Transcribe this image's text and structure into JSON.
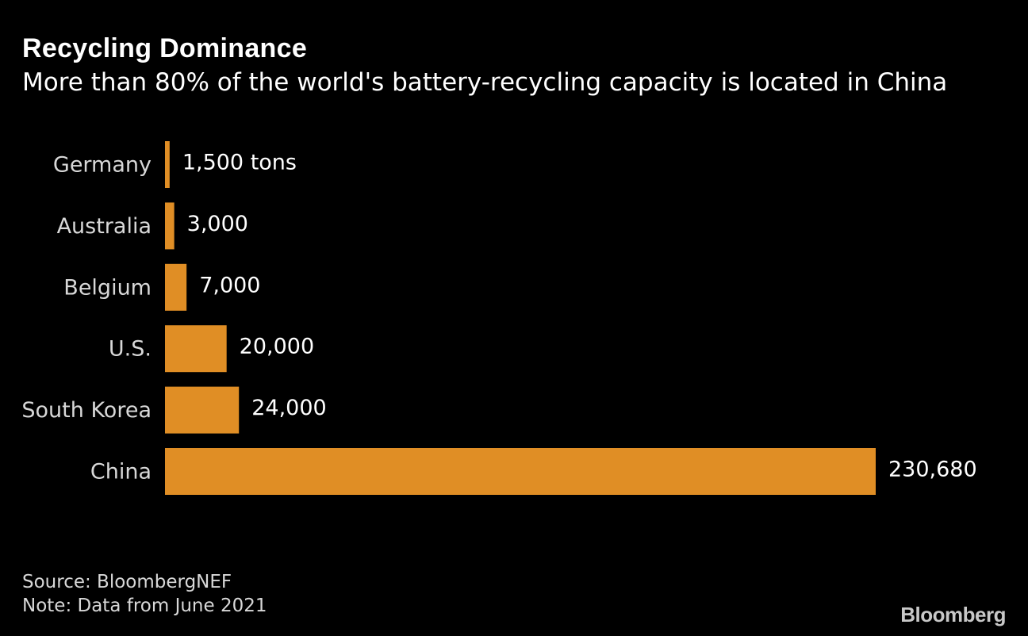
{
  "chart_data": {
    "type": "bar",
    "orientation": "horizontal",
    "title": "Recycling Dominance",
    "subtitle": "More than 80% of the world's battery-recycling capacity is located in China",
    "categories": [
      "Germany",
      "Australia",
      "Belgium",
      "U.S.",
      "South Korea",
      "China"
    ],
    "values": [
      1500,
      3000,
      7000,
      20000,
      24000,
      230680
    ],
    "data_labels": [
      "1,500 tons",
      "3,000",
      "7,000",
      "20,000",
      "24,000",
      "230,680"
    ],
    "unit": "tons",
    "xlim": [
      0,
      230680
    ],
    "grid": false,
    "bar_color": "#e08e25",
    "background": "#000000"
  },
  "footer": {
    "source": "Source: BloombergNEF",
    "note": "Note: Data from June 2021"
  },
  "logo": "Bloomberg"
}
